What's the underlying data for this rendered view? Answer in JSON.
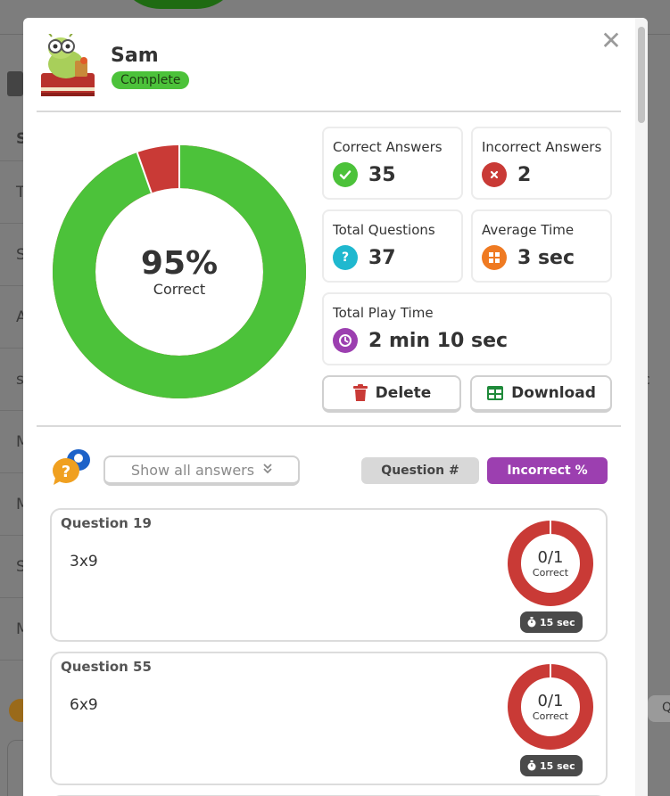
{
  "background": {
    "row_letters": [
      "S",
      "T",
      "S",
      "A",
      "s",
      "M",
      "M",
      "S",
      "M"
    ],
    "right_letter": "c",
    "right_button": "Q"
  },
  "modal": {
    "close_symbol": "✕",
    "player": {
      "name": "Sam",
      "status": "Complete"
    },
    "summary": {
      "percent": "95%",
      "percent_label": "Correct",
      "correct_fraction": 0.946,
      "colors": {
        "correct": "#4cc23a",
        "incorrect": "#c93a36"
      }
    },
    "stats": {
      "correct_answers": {
        "label": "Correct Answers",
        "value": "35"
      },
      "incorrect_answers": {
        "label": "Incorrect Answers",
        "value": "2"
      },
      "total_questions": {
        "label": "Total Questions",
        "value": "37"
      },
      "average_time": {
        "label": "Average Time",
        "value": "3 sec"
      },
      "total_play_time": {
        "label": "Total Play Time",
        "value": "2 min 10 sec"
      }
    },
    "actions": {
      "delete_label": "Delete",
      "download_label": "Download"
    },
    "filters": {
      "show_all_label": "Show all answers",
      "sort_question_label": "Question #",
      "sort_incorrect_label": "Incorrect %"
    },
    "questions": [
      {
        "title": "Question 19",
        "text": "3x9",
        "score": "0/1",
        "score_label": "Correct",
        "time": "15 sec",
        "correct_fraction": 0
      },
      {
        "title": "Question 55",
        "text": "6x9",
        "score": "0/1",
        "score_label": "Correct",
        "time": "15 sec",
        "correct_fraction": 0
      }
    ]
  }
}
